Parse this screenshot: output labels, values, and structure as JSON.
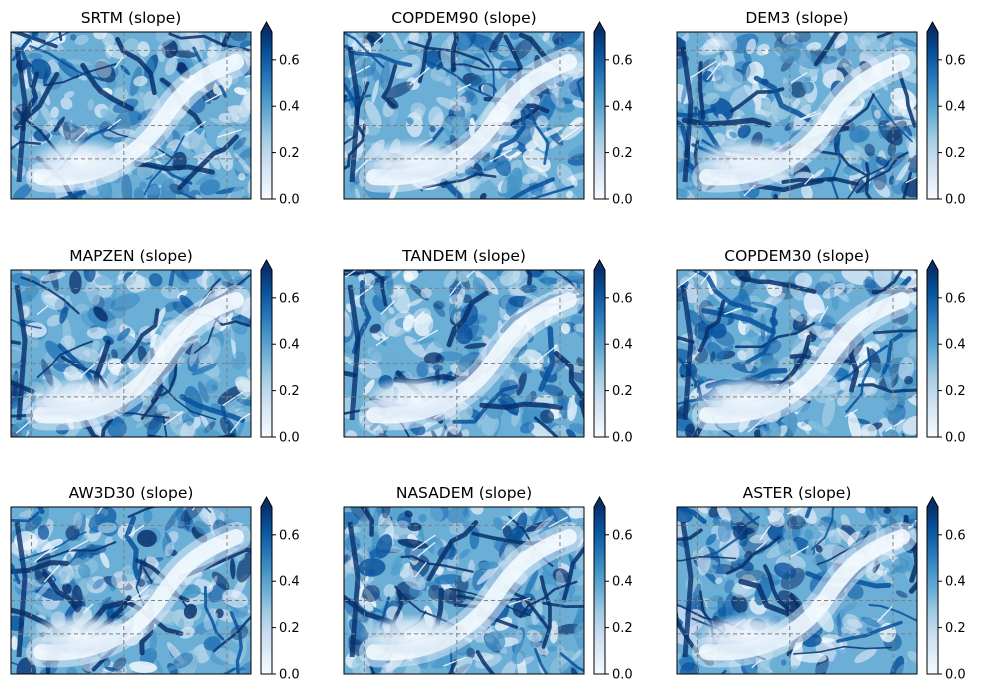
{
  "colors": {
    "cmap": [
      "#f7fbff",
      "#deebf7",
      "#c6dbef",
      "#9ecae1",
      "#6baed6",
      "#4292c6",
      "#2171b5",
      "#08519c",
      "#08306b"
    ],
    "gridline": "#808080",
    "frame": "#000000",
    "text": "#000000"
  },
  "chart_data": [
    {
      "type": "heatmap",
      "title": "SRTM (slope)",
      "colorbar": {
        "vmin": 0.0,
        "vmax": 0.72,
        "extend": "max",
        "ticks": [
          "0.0",
          "0.2",
          "0.4",
          "0.6"
        ]
      },
      "grid": true
    },
    {
      "type": "heatmap",
      "title": "COPDEM90 (slope)",
      "colorbar": {
        "vmin": 0.0,
        "vmax": 0.72,
        "extend": "max",
        "ticks": [
          "0.0",
          "0.2",
          "0.4",
          "0.6"
        ]
      },
      "grid": true
    },
    {
      "type": "heatmap",
      "title": "DEM3 (slope)",
      "colorbar": {
        "vmin": 0.0,
        "vmax": 0.72,
        "extend": "max",
        "ticks": [
          "0.0",
          "0.2",
          "0.4",
          "0.6"
        ]
      },
      "grid": true
    },
    {
      "type": "heatmap",
      "title": "MAPZEN (slope)",
      "colorbar": {
        "vmin": 0.0,
        "vmax": 0.72,
        "extend": "max",
        "ticks": [
          "0.0",
          "0.2",
          "0.4",
          "0.6"
        ]
      },
      "grid": true
    },
    {
      "type": "heatmap",
      "title": "TANDEM (slope)",
      "colorbar": {
        "vmin": 0.0,
        "vmax": 0.72,
        "extend": "max",
        "ticks": [
          "0.0",
          "0.2",
          "0.4",
          "0.6"
        ]
      },
      "grid": true
    },
    {
      "type": "heatmap",
      "title": "COPDEM30 (slope)",
      "colorbar": {
        "vmin": 0.0,
        "vmax": 0.72,
        "extend": "max",
        "ticks": [
          "0.0",
          "0.2",
          "0.4",
          "0.6"
        ]
      },
      "grid": true
    },
    {
      "type": "heatmap",
      "title": "AW3D30 (slope)",
      "colorbar": {
        "vmin": 0.0,
        "vmax": 0.72,
        "extend": "max",
        "ticks": [
          "0.0",
          "0.2",
          "0.4",
          "0.6"
        ]
      },
      "grid": true
    },
    {
      "type": "heatmap",
      "title": "NASADEM (slope)",
      "colorbar": {
        "vmin": 0.0,
        "vmax": 0.72,
        "extend": "max",
        "ticks": [
          "0.0",
          "0.2",
          "0.4",
          "0.6"
        ]
      },
      "grid": true
    },
    {
      "type": "heatmap",
      "title": "ASTER (slope)",
      "colorbar": {
        "vmin": 0.0,
        "vmax": 0.72,
        "extend": "max",
        "ticks": [
          "0.0",
          "0.2",
          "0.4",
          "0.6"
        ]
      },
      "grid": true
    }
  ]
}
